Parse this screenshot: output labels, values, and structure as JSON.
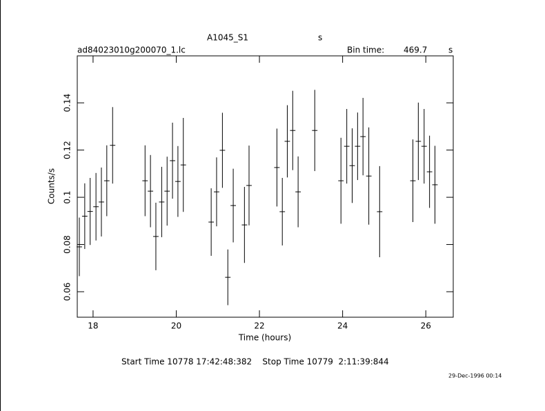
{
  "chart_data": {
    "type": "errorbar",
    "title": "A1045_S1",
    "title_unit": "s",
    "subtitle": "ad84023010g200070_1.lc",
    "bin_time_label": "Bin time:",
    "bin_time": "469.7",
    "bin_time_unit": "s",
    "xlabel": "Time (hours)",
    "ylabel": "Counts/s",
    "footer": "Start Time 10778 17:42:48:382    Stop Time 10779  2:11:39:844",
    "timestamp": "29-Dec-1996 00:14",
    "xlim": [
      17.62,
      26.66
    ],
    "ylim": [
      0.0492,
      0.1599
    ],
    "xticks": [
      18,
      20,
      22,
      24,
      26
    ],
    "yticks": [
      0.06,
      0.08,
      0.1,
      0.12,
      0.14
    ],
    "xerr": 0.065,
    "x": [
      17.67,
      17.8,
      17.93,
      18.07,
      18.2,
      18.33,
      18.47,
      19.25,
      19.38,
      19.51,
      19.65,
      19.78,
      19.91,
      20.04,
      20.17,
      20.84,
      20.97,
      21.11,
      21.24,
      21.37,
      21.64,
      21.75,
      22.42,
      22.55,
      22.67,
      22.8,
      22.93,
      23.33,
      23.96,
      24.1,
      24.23,
      24.36,
      24.49,
      24.63,
      24.89,
      25.69,
      25.82,
      25.96,
      26.09,
      26.22
    ],
    "series": [
      {
        "color": "#000000",
        "values": [
          0.079,
          0.092,
          0.094,
          0.096,
          0.098,
          0.107,
          0.122,
          0.107,
          0.1026,
          0.0834,
          0.098,
          0.1026,
          0.1155,
          0.1067,
          0.1137,
          0.0895,
          0.1023,
          0.1199,
          0.0661,
          0.0965,
          0.0883,
          0.105,
          0.1126,
          0.0939,
          0.1237,
          0.1283,
          0.1023,
          0.1283,
          0.107,
          0.1216,
          0.1134,
          0.1216,
          0.1257,
          0.109,
          0.0939,
          0.107,
          0.1237,
          0.1216,
          0.1108,
          0.1053
        ],
        "yerr": [
          0.0124,
          0.0139,
          0.0142,
          0.0143,
          0.0146,
          0.015,
          0.0162,
          0.015,
          0.0153,
          0.0143,
          0.0149,
          0.0146,
          0.0161,
          0.015,
          0.0199,
          0.0143,
          0.0146,
          0.0159,
          0.0118,
          0.0156,
          0.0161,
          0.0169,
          0.0165,
          0.0143,
          0.0153,
          0.0168,
          0.015,
          0.0172,
          0.0182,
          0.0158,
          0.0158,
          0.0143,
          0.0164,
          0.0206,
          0.0193,
          0.0175,
          0.0164,
          0.0158,
          0.0153,
          0.0165
        ]
      }
    ]
  }
}
